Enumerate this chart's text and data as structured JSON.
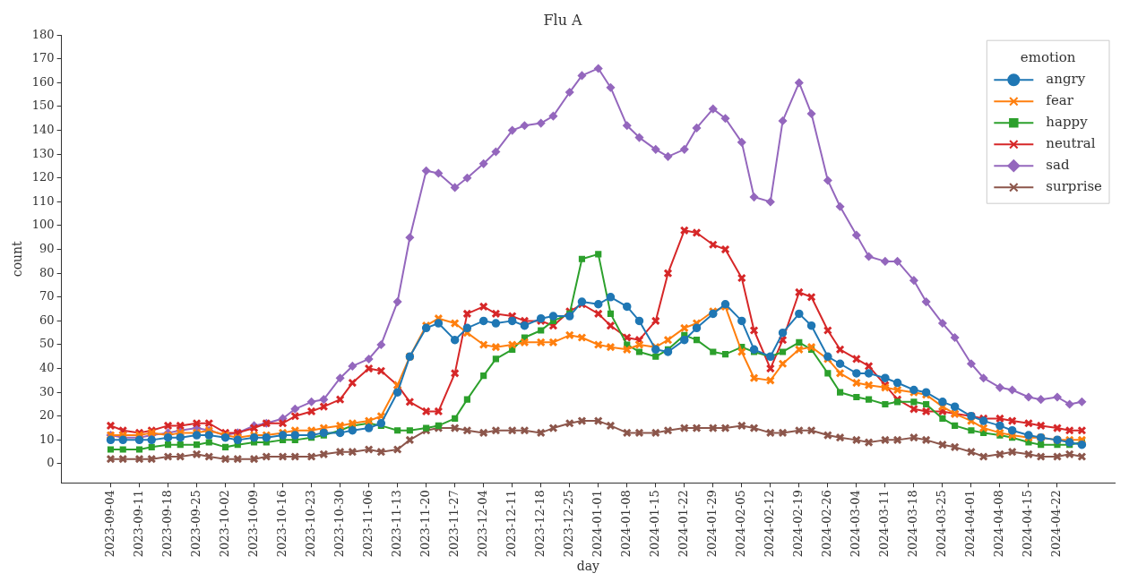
{
  "chart_data": {
    "type": "line",
    "title": "Flu A",
    "xlabel": "day",
    "ylabel": "count",
    "legend_title": "emotion",
    "legend": "top right",
    "grid": false,
    "line_style": "solid",
    "xlim": [
      "2023-08-23",
      "2024-05-06"
    ],
    "ylim": [
      -8,
      180
    ],
    "yticks": [
      0,
      10,
      20,
      30,
      40,
      50,
      60,
      70,
      80,
      90,
      100,
      110,
      120,
      130,
      140,
      150,
      160,
      170,
      180
    ],
    "xticks": [
      "2023-09-04",
      "2023-09-11",
      "2023-09-18",
      "2023-09-25",
      "2023-10-02",
      "2023-10-09",
      "2023-10-16",
      "2023-10-23",
      "2023-10-30",
      "2023-11-06",
      "2023-11-13",
      "2023-11-20",
      "2023-11-27",
      "2023-12-04",
      "2023-12-11",
      "2023-12-18",
      "2023-12-25",
      "2024-01-01",
      "2024-01-08",
      "2024-01-15",
      "2024-01-22",
      "2024-01-29",
      "2024-02-05",
      "2024-02-12",
      "2024-02-19",
      "2024-02-26",
      "2024-03-04",
      "2024-03-11",
      "2024-03-18",
      "2024-03-25",
      "2024-04-01",
      "2024-04-08",
      "2024-04-15",
      "2024-04-22"
    ],
    "x": [
      "2023-09-04",
      "2023-09-07",
      "2023-09-11",
      "2023-09-14",
      "2023-09-18",
      "2023-09-21",
      "2023-09-25",
      "2023-09-28",
      "2023-10-02",
      "2023-10-05",
      "2023-10-09",
      "2023-10-12",
      "2023-10-16",
      "2023-10-19",
      "2023-10-23",
      "2023-10-26",
      "2023-10-30",
      "2023-11-02",
      "2023-11-06",
      "2023-11-09",
      "2023-11-13",
      "2023-11-16",
      "2023-11-20",
      "2023-11-23",
      "2023-11-27",
      "2023-11-30",
      "2023-12-04",
      "2023-12-07",
      "2023-12-11",
      "2023-12-14",
      "2023-12-18",
      "2023-12-21",
      "2023-12-25",
      "2023-12-28",
      "2024-01-01",
      "2024-01-04",
      "2024-01-08",
      "2024-01-11",
      "2024-01-15",
      "2024-01-18",
      "2024-01-22",
      "2024-01-25",
      "2024-01-29",
      "2024-02-01",
      "2024-02-05",
      "2024-02-08",
      "2024-02-12",
      "2024-02-15",
      "2024-02-19",
      "2024-02-22",
      "2024-02-26",
      "2024-02-29",
      "2024-03-04",
      "2024-03-07",
      "2024-03-11",
      "2024-03-14",
      "2024-03-18",
      "2024-03-21",
      "2024-03-25",
      "2024-03-28",
      "2024-04-01",
      "2024-04-04",
      "2024-04-08",
      "2024-04-11",
      "2024-04-15",
      "2024-04-18",
      "2024-04-22",
      "2024-04-25",
      "2024-04-28"
    ],
    "series": [
      {
        "name": "angry",
        "color": "#1f77b4",
        "marker": "circle",
        "values": [
          10,
          10,
          10,
          10,
          11,
          11,
          12,
          12,
          11,
          10,
          11,
          11,
          12,
          12,
          12,
          13,
          13,
          14,
          15,
          17,
          30,
          45,
          57,
          59,
          52,
          57,
          60,
          59,
          60,
          58,
          61,
          62,
          62,
          68,
          67,
          70,
          66,
          60,
          48,
          47,
          52,
          57,
          63,
          67,
          60,
          48,
          45,
          55,
          63,
          58,
          45,
          42,
          38,
          38,
          36,
          34,
          31,
          30,
          26,
          24,
          20,
          18,
          16,
          14,
          12,
          11,
          10,
          9,
          8
        ]
      },
      {
        "name": "fear",
        "color": "#ff7f0e",
        "marker": "cross",
        "values": [
          12,
          12,
          12,
          13,
          12,
          13,
          13,
          14,
          12,
          11,
          12,
          12,
          13,
          14,
          14,
          15,
          16,
          17,
          18,
          20,
          33,
          45,
          58,
          61,
          59,
          55,
          50,
          49,
          50,
          51,
          51,
          51,
          54,
          53,
          50,
          49,
          48,
          50,
          49,
          52,
          57,
          59,
          64,
          66,
          47,
          36,
          35,
          42,
          48,
          49,
          44,
          38,
          34,
          33,
          32,
          31,
          30,
          29,
          24,
          21,
          18,
          15,
          13,
          12,
          11,
          11,
          10,
          10,
          10
        ]
      },
      {
        "name": "happy",
        "color": "#2ca02c",
        "marker": "square",
        "values": [
          6,
          6,
          6,
          7,
          8,
          8,
          8,
          9,
          7,
          8,
          9,
          9,
          10,
          10,
          11,
          12,
          14,
          16,
          17,
          16,
          14,
          14,
          15,
          16,
          19,
          27,
          37,
          44,
          48,
          53,
          56,
          60,
          63,
          86,
          88,
          63,
          50,
          47,
          45,
          48,
          54,
          52,
          47,
          46,
          49,
          47,
          45,
          47,
          51,
          48,
          38,
          30,
          28,
          27,
          25,
          26,
          26,
          25,
          19,
          16,
          14,
          13,
          12,
          11,
          9,
          8,
          8,
          8,
          9
        ]
      },
      {
        "name": "neutral",
        "color": "#d62728",
        "marker": "cross",
        "values": [
          16,
          14,
          13,
          14,
          16,
          16,
          17,
          17,
          13,
          13,
          15,
          17,
          17,
          20,
          22,
          24,
          27,
          34,
          40,
          39,
          33,
          26,
          22,
          22,
          38,
          63,
          66,
          63,
          62,
          60,
          60,
          58,
          64,
          67,
          63,
          58,
          53,
          52,
          60,
          80,
          98,
          97,
          92,
          90,
          78,
          56,
          40,
          52,
          72,
          70,
          56,
          48,
          44,
          41,
          33,
          27,
          23,
          22,
          22,
          21,
          20,
          19,
          19,
          18,
          17,
          16,
          15,
          14,
          14
        ]
      },
      {
        "name": "sad",
        "color": "#9467bd",
        "marker": "diamond",
        "values": [
          12,
          11,
          11,
          12,
          13,
          14,
          15,
          14,
          12,
          13,
          16,
          17,
          19,
          23,
          26,
          27,
          36,
          41,
          44,
          50,
          68,
          95,
          123,
          122,
          116,
          120,
          126,
          131,
          140,
          142,
          143,
          146,
          156,
          163,
          166,
          158,
          142,
          137,
          132,
          129,
          132,
          141,
          149,
          145,
          135,
          112,
          110,
          144,
          160,
          147,
          119,
          108,
          96,
          87,
          85,
          85,
          77,
          68,
          59,
          53,
          42,
          36,
          32,
          31,
          28,
          27,
          28,
          25,
          26
        ]
      },
      {
        "name": "surprise",
        "color": "#8c564b",
        "marker": "cross",
        "values": [
          2,
          2,
          2,
          2,
          3,
          3,
          4,
          3,
          2,
          2,
          2,
          3,
          3,
          3,
          3,
          4,
          5,
          5,
          6,
          5,
          6,
          10,
          14,
          15,
          15,
          14,
          13,
          14,
          14,
          14,
          13,
          15,
          17,
          18,
          18,
          16,
          13,
          13,
          13,
          14,
          15,
          15,
          15,
          15,
          16,
          15,
          13,
          13,
          14,
          14,
          12,
          11,
          10,
          9,
          10,
          10,
          11,
          10,
          8,
          7,
          5,
          3,
          4,
          5,
          4,
          3,
          3,
          4,
          3
        ]
      }
    ]
  }
}
